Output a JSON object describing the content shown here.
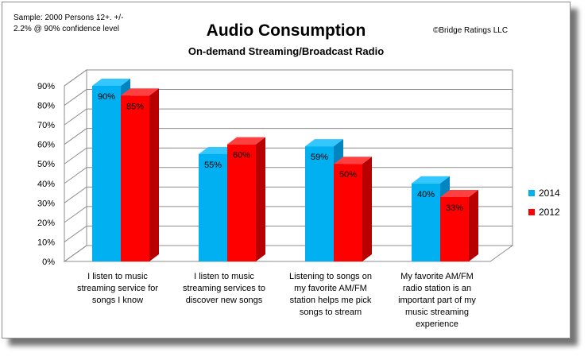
{
  "note": [
    "Sample: 2000 Persons 12+. +/-",
    "2.2% @  90% confidence level"
  ],
  "credit": "©Bridge Ratings LLC",
  "chart_data": {
    "type": "bar",
    "title": "Audio Consumption",
    "subtitle": "On-demand Streaming/Broadcast Radio",
    "categories": [
      [
        "I listen to music",
        "streaming service for",
        "songs I know"
      ],
      [
        "I listen to music",
        "streaming services to",
        "discover new songs"
      ],
      [
        "Listening to songs on",
        "my favorite AM/FM",
        "station helps me pick",
        "songs to stream"
      ],
      [
        "My favorite AM/FM",
        "radio station is an",
        "important part of my",
        "music streaming",
        "experience"
      ]
    ],
    "series": [
      {
        "name": "2014",
        "values": [
          90,
          55,
          59,
          40
        ],
        "labels": [
          "90%",
          "55%",
          "59%",
          "40%"
        ],
        "color": "#00b0f0",
        "side": "#0085c0",
        "top": "#33c6ff"
      },
      {
        "name": "2012",
        "values": [
          85,
          60,
          50,
          33
        ],
        "labels": [
          "85%",
          "60%",
          "50%",
          "33%"
        ],
        "color": "#ff0000",
        "side": "#b80000",
        "top": "#ff4040"
      }
    ],
    "yticks": [
      "0%",
      "10%",
      "20%",
      "30%",
      "40%",
      "50%",
      "60%",
      "70%",
      "80%",
      "90%"
    ],
    "ylim": [
      0,
      100
    ],
    "grid": true,
    "legend_position": "right"
  }
}
